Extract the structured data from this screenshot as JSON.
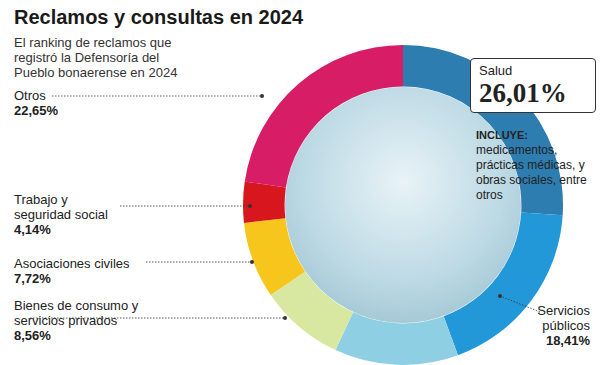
{
  "chart_data": {
    "type": "pie",
    "title": "Reclamos y consultas en 2024",
    "subtitle": "El ranking de reclamos que registró la Defensoría del Pueblo bonaerense en 2024",
    "categories": [
      "Salud",
      "Servicios públicos",
      null,
      "Bienes de consumo y servicios privados",
      "Asociaciones civiles",
      "Trabajo y seguridad social",
      "Otros"
    ],
    "values": [
      26.01,
      18.41,
      12.51,
      8.56,
      7.72,
      4.14,
      22.65
    ],
    "value_labels": [
      "26,01%",
      "18,41%",
      null,
      "8,56%",
      "7,72%",
      "4,14%",
      "22,65%"
    ],
    "colors": [
      "#2d7db0",
      "#2398d9",
      "#8fcfe3",
      "#d9e8a1",
      "#f6c61c",
      "#d7161d",
      "#d71d66"
    ],
    "data_labels": true,
    "annotations": [
      "INCLUYE:",
      "medicamentos, prácticas médicas, y obras sociales, entre otros"
    ]
  }
}
